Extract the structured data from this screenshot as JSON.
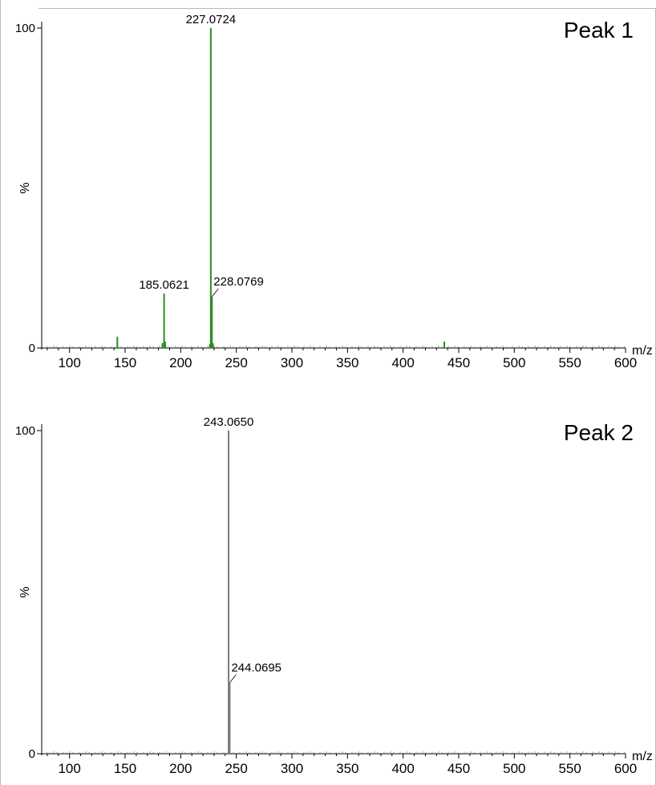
{
  "chart_data": [
    {
      "type": "bar",
      "title": "Peak 1",
      "xlabel": "m/z",
      "ylabel": "%",
      "xlim": [
        75,
        600
      ],
      "ylim": [
        0,
        100
      ],
      "x_ticks": [
        100,
        150,
        200,
        250,
        300,
        350,
        400,
        450,
        500,
        550,
        600
      ],
      "y_ticks": [
        0,
        100
      ],
      "color": "#2e8b22",
      "grid": false,
      "legend": "none",
      "peaks": [
        {
          "mz": 143.0,
          "intensity": 3.5,
          "label": ""
        },
        {
          "mz": 183.5,
          "intensity": 1.5,
          "label": ""
        },
        {
          "mz": 185.0621,
          "intensity": 17,
          "label": "185.0621"
        },
        {
          "mz": 186.0,
          "intensity": 2,
          "label": ""
        },
        {
          "mz": 226.2,
          "intensity": 1.2,
          "label": ""
        },
        {
          "mz": 227.0724,
          "intensity": 100,
          "label": "227.0724"
        },
        {
          "mz": 228.0769,
          "intensity": 16,
          "label": "228.0769"
        },
        {
          "mz": 229.0,
          "intensity": 1.5,
          "label": ""
        },
        {
          "mz": 437.0,
          "intensity": 2,
          "label": ""
        }
      ]
    },
    {
      "type": "bar",
      "title": "Peak 2",
      "xlabel": "m/z",
      "ylabel": "%",
      "xlim": [
        75,
        600
      ],
      "ylim": [
        0,
        100
      ],
      "x_ticks": [
        100,
        150,
        200,
        250,
        300,
        350,
        400,
        450,
        500,
        550,
        600
      ],
      "y_ticks": [
        0,
        100
      ],
      "color": "#7a7a7a",
      "grid": false,
      "legend": "none",
      "peaks": [
        {
          "mz": 243.065,
          "intensity": 100,
          "label": "243.0650"
        },
        {
          "mz": 244.0695,
          "intensity": 22,
          "label": "244.0695"
        }
      ]
    }
  ]
}
